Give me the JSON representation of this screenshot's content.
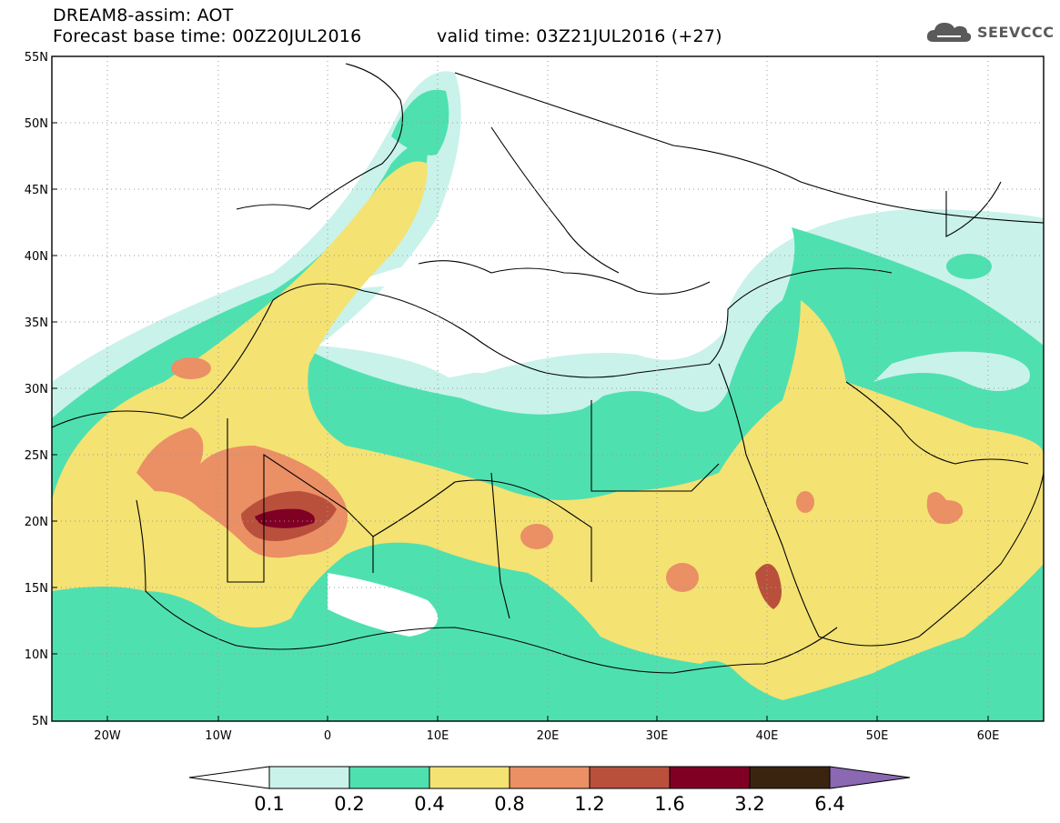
{
  "header": {
    "title": "DREAM8-assim: AOT",
    "base_time": "Forecast base time: 00Z20JUL2016",
    "valid_time": "valid time: 03Z21JUL2016 (+27)"
  },
  "logo": {
    "text": "SEEVCCC",
    "icon": "cloud-icon",
    "color": "#5a5a5a"
  },
  "map": {
    "lat_labels": [
      "55N",
      "50N",
      "45N",
      "40N",
      "35N",
      "30N",
      "25N",
      "20N",
      "15N",
      "10N",
      "5N"
    ],
    "lon_labels": [
      "20W",
      "10W",
      "0",
      "10E",
      "20E",
      "30E",
      "40E",
      "50E",
      "60E"
    ]
  },
  "colorbar": {
    "levels": [
      "0.1",
      "0.2",
      "0.4",
      "0.8",
      "1.2",
      "1.6",
      "3.2",
      "6.4"
    ],
    "colors": [
      "#ffffff",
      "#c9f2ea",
      "#4fe0b0",
      "#f4e273",
      "#eb8f65",
      "#b9503c",
      "#800024",
      "#3a2410",
      "#8a68b2"
    ]
  }
}
